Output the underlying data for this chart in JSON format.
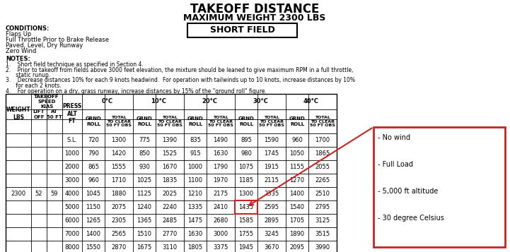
{
  "title1": "TAKEOFF DISTANCE",
  "title2": "MAXIMUM WEIGHT 2300 LBS",
  "short_field_label": "SHORT FIELD",
  "conditions_label": "CONDITIONS:",
  "conditions": [
    "Flaps Up",
    "Full Throttle Prior to Brake Release",
    "Paved, Level, Dry Runway",
    "Zero Wind"
  ],
  "notes_label": "NOTES:",
  "note_lines": [
    "1.    Short field technique as specified in Section 4.",
    "2.    Prior to takeoff from fields above 3000 feet elevation, the mixture should be leaned to give maximum RPM in a full throttle,",
    "      static runup.",
    "3.    Decrease distances 10% for each 9 knots headwind.  For operation with tailwinds up to 10 knots, increase distances by 10%",
    "      for each 2 knots.",
    "4.    For operation on a dry, grass runway, increase distances by 15% of the \"ground roll\" figure."
  ],
  "weight": 2300,
  "lift_off": 52,
  "at_50ft": 59,
  "press_alts": [
    "S.L.",
    "1000",
    "2000",
    "3000",
    "4000",
    "5000",
    "6000",
    "7000",
    "8000"
  ],
  "data_0C_grnd": [
    720,
    790,
    865,
    960,
    1045,
    1150,
    1265,
    1400,
    1550
  ],
  "data_0C_total": [
    1300,
    1420,
    1555,
    1710,
    1880,
    2075,
    2305,
    2565,
    2870
  ],
  "data_10C_grnd": [
    775,
    850,
    930,
    1025,
    1125,
    1240,
    1365,
    1510,
    1675
  ],
  "data_10C_total": [
    1390,
    1525,
    1670,
    1835,
    2025,
    2240,
    2485,
    2770,
    3110
  ],
  "data_20C_grnd": [
    835,
    915,
    1000,
    1100,
    1210,
    1335,
    1475,
    1630,
    1805
  ],
  "data_20C_total": [
    1490,
    1630,
    1790,
    1970,
    2175,
    2410,
    2680,
    3000,
    3375
  ],
  "data_30C_grnd": [
    895,
    980,
    1075,
    1185,
    1300,
    1435,
    1585,
    1755,
    1945
  ],
  "data_30C_total": [
    1590,
    1745,
    1915,
    2115,
    2335,
    2595,
    2895,
    3245,
    3670
  ],
  "data_40C_grnd": [
    960,
    1050,
    1155,
    1270,
    1400,
    1540,
    1705,
    1890,
    2095
  ],
  "data_40C_total": [
    1700,
    1865,
    2055,
    2265,
    2510,
    2795,
    3125,
    3515,
    3990
  ],
  "highlight_row": 5,
  "highlight_temp_idx": 3,
  "legend_items": [
    "- No wind",
    "- Full Load",
    "- 5,000 ft altitude",
    "- 30 degree Celsius"
  ],
  "red_color": "#cc2222",
  "temps": [
    "0°C",
    "10°C",
    "20°C",
    "30°C",
    "40°C"
  ]
}
